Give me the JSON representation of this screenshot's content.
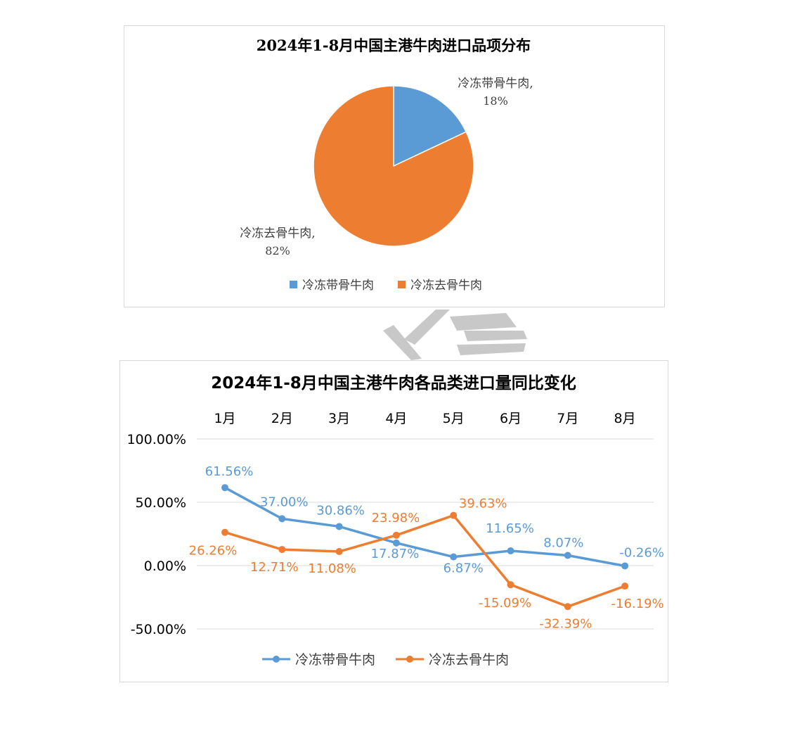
{
  "colors": {
    "series1": "#5B9BD5",
    "series2": "#ED7D31",
    "grid": "#D9D9D9",
    "frame": "#D9D9D9",
    "watermark": "#C8C8C8"
  },
  "chart_data": [
    {
      "type": "pie",
      "title": "2024年1-8月中国主港牛肉进口品项分布",
      "categories": [
        "冷冻带骨牛肉",
        "冷冻去骨牛肉"
      ],
      "values": [
        18,
        82
      ],
      "data_labels": [
        {
          "name": "冷冻带骨牛肉,",
          "value": "18%"
        },
        {
          "name": "冷冻去骨牛肉,",
          "value": "82%"
        }
      ],
      "legend": "bottom",
      "legend_entries": [
        "冷冻带骨牛肉",
        "冷冻去骨牛肉"
      ]
    },
    {
      "type": "line",
      "title": "2024年1-8月中国主港牛肉各品类进口量同比变化",
      "categories": [
        "1月",
        "2月",
        "3月",
        "4月",
        "5月",
        "6月",
        "7月",
        "8月"
      ],
      "x_axis_position": "top",
      "ylim": [
        -50,
        100
      ],
      "yticks": [
        "100.00%",
        "50.00%",
        "0.00%",
        "-50.00%"
      ],
      "ytick_values": [
        100,
        50,
        0,
        -50
      ],
      "grid": true,
      "legend": "bottom",
      "series": [
        {
          "name": "冷冻带骨牛肉",
          "values": [
            61.56,
            37.0,
            30.86,
            17.87,
            6.87,
            11.65,
            8.07,
            -0.26
          ],
          "labels": [
            "61.56%",
            "37.00%",
            "30.86%",
            "17.87%",
            "6.87%",
            "11.65%",
            "8.07%",
            "-0.26%"
          ]
        },
        {
          "name": "冷冻去骨牛肉",
          "values": [
            26.26,
            12.71,
            11.08,
            23.98,
            39.63,
            -15.09,
            -32.39,
            -16.19
          ],
          "labels": [
            "26.26%",
            "12.71%",
            "11.08%",
            "23.98%",
            "39.63%",
            "-15.09%",
            "-32.39%",
            "-16.19%"
          ]
        }
      ]
    }
  ]
}
